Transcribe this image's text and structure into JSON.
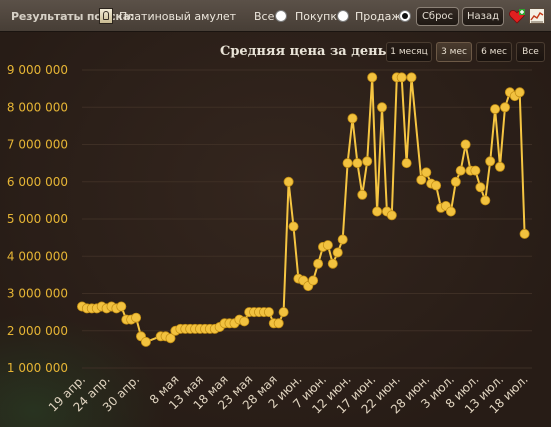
{
  "toolbar": {
    "search_label": "Результаты поиска:",
    "item_icon": "amulet-icon",
    "item_name": "Платиновый амулет",
    "filters": [
      {
        "label": "Все",
        "checked": false
      },
      {
        "label": "Покупка",
        "checked": false
      },
      {
        "label": "Продажа",
        "checked": true
      }
    ],
    "reset_label": "Сброс",
    "back_label": "Назад",
    "favorite_icon": "heart-plus-icon",
    "chart_icon": "chart-icon"
  },
  "range_buttons": [
    {
      "label": "1 месяц",
      "active": false
    },
    {
      "label": "3 мес",
      "active": true
    },
    {
      "label": "6 мес",
      "active": false
    },
    {
      "label": "Все",
      "active": false
    }
  ],
  "colors": {
    "line": "#f5c542",
    "point": "#f2c23f",
    "point_stroke": "#c38f15",
    "axis_label": "#e6b535"
  },
  "chart_data": {
    "type": "line",
    "title": "Средняя цена за день",
    "xlabel": "",
    "ylabel": "",
    "ylim": [
      1000000,
      9000000
    ],
    "y_ticks": [
      1000000,
      2000000,
      3000000,
      4000000,
      5000000,
      6000000,
      7000000,
      8000000,
      9000000
    ],
    "y_tick_labels": [
      "1 000 000",
      "2 000 000",
      "3 000 000",
      "4 000 000",
      "5 000 000",
      "6 000 000",
      "7 000 000",
      "8 000 000",
      "9 000 000"
    ],
    "x_start": "19 апр.",
    "x_ticks": [
      {
        "day": 0,
        "label": "19 апр."
      },
      {
        "day": 5,
        "label": "24 апр."
      },
      {
        "day": 11,
        "label": "30 апр."
      },
      {
        "day": 19,
        "label": "8 мая"
      },
      {
        "day": 24,
        "label": "13 мая"
      },
      {
        "day": 29,
        "label": "18 мая"
      },
      {
        "day": 34,
        "label": "23 мая"
      },
      {
        "day": 39,
        "label": "28 мая"
      },
      {
        "day": 44,
        "label": "2 июн."
      },
      {
        "day": 49,
        "label": "7 июн."
      },
      {
        "day": 54,
        "label": "12 июн."
      },
      {
        "day": 59,
        "label": "17 июн."
      },
      {
        "day": 64,
        "label": "22 июн."
      },
      {
        "day": 70,
        "label": "28 июн."
      },
      {
        "day": 75,
        "label": "3 июл."
      },
      {
        "day": 80,
        "label": "8 июл."
      },
      {
        "day": 85,
        "label": "13 июл."
      },
      {
        "day": 90,
        "label": "18 июл."
      }
    ],
    "x_max_day": 91.5,
    "series": [
      {
        "values": [
          [
            0,
            2650000
          ],
          [
            1,
            2600000
          ],
          [
            2,
            2600000
          ],
          [
            3,
            2600000
          ],
          [
            4,
            2650000
          ],
          [
            5,
            2600000
          ],
          [
            6,
            2650000
          ],
          [
            7,
            2600000
          ],
          [
            8,
            2650000
          ],
          [
            9,
            2300000
          ],
          [
            10,
            2300000
          ],
          [
            11,
            2350000
          ],
          [
            12,
            1850000
          ],
          [
            13,
            1700000
          ],
          [
            16,
            1850000
          ],
          [
            17,
            1850000
          ],
          [
            18,
            1800000
          ],
          [
            19,
            2000000
          ],
          [
            20,
            2050000
          ],
          [
            21,
            2050000
          ],
          [
            22,
            2050000
          ],
          [
            23,
            2050000
          ],
          [
            24,
            2050000
          ],
          [
            25,
            2050000
          ],
          [
            26,
            2050000
          ],
          [
            27,
            2050000
          ],
          [
            28,
            2100000
          ],
          [
            29,
            2200000
          ],
          [
            30,
            2200000
          ],
          [
            31,
            2200000
          ],
          [
            32,
            2300000
          ],
          [
            33,
            2250000
          ],
          [
            34,
            2500000
          ],
          [
            35,
            2500000
          ],
          [
            36,
            2500000
          ],
          [
            37,
            2500000
          ],
          [
            38,
            2500000
          ],
          [
            39,
            2200000
          ],
          [
            40,
            2200000
          ],
          [
            41,
            2500000
          ],
          [
            42,
            6000000
          ],
          [
            43,
            4800000
          ],
          [
            44,
            3400000
          ],
          [
            45,
            3350000
          ],
          [
            46,
            3200000
          ],
          [
            47,
            3350000
          ],
          [
            48,
            3800000
          ],
          [
            49,
            4250000
          ],
          [
            50,
            4300000
          ],
          [
            51,
            3800000
          ],
          [
            52,
            4100000
          ],
          [
            53,
            4450000
          ],
          [
            54,
            6500000
          ],
          [
            55,
            7700000
          ],
          [
            56,
            6500000
          ],
          [
            57,
            5650000
          ],
          [
            58,
            6550000
          ],
          [
            59,
            8800000
          ],
          [
            60,
            5200000
          ],
          [
            61,
            8000000
          ],
          [
            62,
            5200000
          ],
          [
            63,
            5100000
          ],
          [
            64,
            8800000
          ],
          [
            65,
            8800000
          ],
          [
            66,
            6500000
          ],
          [
            67,
            8800000
          ],
          [
            69,
            6050000
          ],
          [
            70,
            6250000
          ],
          [
            71,
            5950000
          ],
          [
            72,
            5900000
          ],
          [
            73,
            5300000
          ],
          [
            74,
            5350000
          ],
          [
            75,
            5200000
          ],
          [
            76,
            6000000
          ],
          [
            77,
            6300000
          ],
          [
            78,
            7000000
          ],
          [
            79,
            6300000
          ],
          [
            80,
            6300000
          ],
          [
            81,
            5850000
          ],
          [
            82,
            5500000
          ],
          [
            83,
            6550000
          ],
          [
            84,
            7950000
          ],
          [
            85,
            6400000
          ],
          [
            86,
            8000000
          ],
          [
            87,
            8400000
          ],
          [
            88,
            8300000
          ],
          [
            89,
            8400000
          ],
          [
            90,
            4600000
          ]
        ]
      }
    ]
  }
}
